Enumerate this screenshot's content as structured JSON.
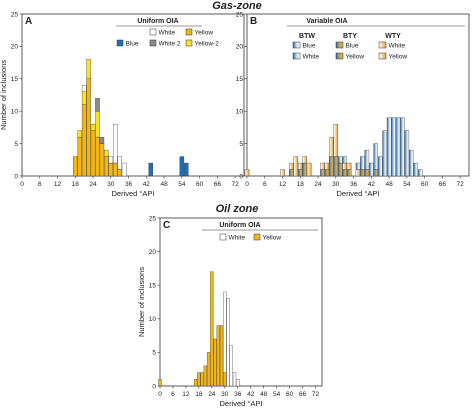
{
  "colors": {
    "white": "#ffffff",
    "yellow": "#f2b51a",
    "yellow2": "#fce02a",
    "blue": "#1f6fb5",
    "grey": "#8a8a8a",
    "gradBlue": "#2e6fae",
    "gradOrange": "#e8a23a"
  },
  "sections": {
    "gas_title": "Gas-zone",
    "oil_title": "Oil zone"
  },
  "chart_data": [
    {
      "id": "A",
      "type": "bar",
      "stacked": true,
      "panel_label": "A",
      "legend_title": "Uniform OIA",
      "legend": [
        {
          "name": "White",
          "color": "white"
        },
        {
          "name": "Yellow",
          "color": "yellow"
        },
        {
          "name": "Blue",
          "color": "blue"
        },
        {
          "name": "White 2",
          "color": "grey"
        },
        {
          "name": "Yellow-2",
          "color": "yellow2"
        }
      ],
      "xlabel": "Derived °API",
      "ylabel": "Number of inclusions",
      "xlim": [
        0,
        75
      ],
      "ylim": [
        0,
        25
      ],
      "xticks": [
        "0",
        "6",
        "12",
        "18",
        "24",
        "30",
        "36",
        "42",
        "48",
        "54",
        "60",
        "66",
        "72"
      ],
      "yticks": [
        "0",
        "5",
        "10",
        "15",
        "20",
        "25"
      ],
      "bin_width": 1.5,
      "bars": [
        {
          "x": 18,
          "segments": [
            [
              "yellow",
              3
            ]
          ]
        },
        {
          "x": 19.5,
          "segments": [
            [
              "yellow",
              6
            ],
            [
              "yellow2",
              1
            ]
          ]
        },
        {
          "x": 21,
          "segments": [
            [
              "yellow",
              11
            ],
            [
              "yellow2",
              2
            ],
            [
              "white",
              1
            ]
          ]
        },
        {
          "x": 22.5,
          "segments": [
            [
              "yellow",
              15
            ],
            [
              "yellow2",
              3
            ]
          ]
        },
        {
          "x": 24,
          "segments": [
            [
              "yellow",
              7
            ],
            [
              "yellow2",
              1
            ]
          ]
        },
        {
          "x": 25.5,
          "segments": [
            [
              "yellow",
              6
            ],
            [
              "yellow2",
              4
            ],
            [
              "grey",
              2
            ]
          ]
        },
        {
          "x": 27,
          "segments": [
            [
              "yellow",
              5
            ],
            [
              "grey",
              1
            ]
          ]
        },
        {
          "x": 28.5,
          "segments": [
            [
              "yellow",
              3
            ],
            [
              "yellow2",
              1
            ]
          ]
        },
        {
          "x": 30,
          "segments": [
            [
              "yellow",
              2
            ],
            [
              "white",
              1
            ]
          ]
        },
        {
          "x": 31.5,
          "segments": [
            [
              "yellow",
              2
            ],
            [
              "white",
              6
            ]
          ]
        },
        {
          "x": 33,
          "segments": [
            [
              "yellow",
              1
            ],
            [
              "white",
              2
            ]
          ]
        },
        {
          "x": 34.5,
          "segments": [
            [
              "white",
              2
            ]
          ]
        },
        {
          "x": 43.5,
          "segments": [
            [
              "blue",
              2
            ]
          ]
        },
        {
          "x": 54,
          "segments": [
            [
              "blue",
              3
            ]
          ]
        },
        {
          "x": 55.5,
          "segments": [
            [
              "blue",
              2
            ]
          ]
        }
      ]
    },
    {
      "id": "B",
      "type": "bar",
      "stacked": true,
      "panel_label": "B",
      "legend_title": "Variable OIA",
      "legend_groups": [
        {
          "name": "BTW",
          "items": [
            "Blue",
            "White"
          ]
        },
        {
          "name": "BTY",
          "items": [
            "Blue",
            "Yellow"
          ]
        },
        {
          "name": "WTY",
          "items": [
            "White",
            "Yellow"
          ]
        }
      ],
      "xlabel": "Derived °API",
      "xlim": [
        0,
        75
      ],
      "ylim": [
        0,
        25
      ],
      "xticks": [
        "0",
        "6",
        "12",
        "18",
        "24",
        "30",
        "36",
        "42",
        "48",
        "54",
        "60",
        "66",
        "72"
      ],
      "yticks": [
        "0",
        "5",
        "10",
        "15",
        "20",
        "25"
      ],
      "bin_width": 1.5,
      "bars": [
        {
          "x": 0,
          "segments": [
            [
              "wty",
              1
            ]
          ]
        },
        {
          "x": 12,
          "segments": [
            [
              "wty",
              1
            ]
          ]
        },
        {
          "x": 15,
          "segments": [
            [
              "bty",
              1
            ],
            [
              "wty",
              1
            ]
          ]
        },
        {
          "x": 16.5,
          "segments": [
            [
              "wty",
              3
            ]
          ]
        },
        {
          "x": 18,
          "segments": [
            [
              "bty",
              1
            ],
            [
              "wty",
              1
            ]
          ]
        },
        {
          "x": 19.5,
          "segments": [
            [
              "bty",
              2
            ],
            [
              "wty",
              1
            ]
          ]
        },
        {
          "x": 21,
          "segments": [
            [
              "wty",
              2
            ]
          ]
        },
        {
          "x": 25.5,
          "segments": [
            [
              "bty",
              1
            ],
            [
              "wty",
              1
            ]
          ]
        },
        {
          "x": 27,
          "segments": [
            [
              "bty",
              1
            ],
            [
              "wty",
              1
            ]
          ]
        },
        {
          "x": 28.5,
          "segments": [
            [
              "bty",
              3
            ],
            [
              "wty",
              3
            ]
          ]
        },
        {
          "x": 30,
          "segments": [
            [
              "bty",
              3
            ],
            [
              "wty",
              5
            ]
          ]
        },
        {
          "x": 31.5,
          "segments": [
            [
              "bty",
              2
            ],
            [
              "btw",
              1
            ]
          ]
        },
        {
          "x": 33,
          "segments": [
            [
              "bty",
              1
            ],
            [
              "wty",
              1
            ],
            [
              "btw",
              1
            ]
          ]
        },
        {
          "x": 34.5,
          "segments": [
            [
              "bty",
              1
            ],
            [
              "wty",
              1
            ]
          ]
        },
        {
          "x": 37.5,
          "segments": [
            [
              "wty",
              1
            ],
            [
              "btw",
              1
            ]
          ]
        },
        {
          "x": 39,
          "segments": [
            [
              "bty",
              1
            ],
            [
              "btw",
              2
            ]
          ]
        },
        {
          "x": 40.5,
          "segments": [
            [
              "bty",
              1
            ],
            [
              "btw",
              3
            ]
          ]
        },
        {
          "x": 42,
          "segments": [
            [
              "btw",
              2
            ]
          ]
        },
        {
          "x": 43.5,
          "segments": [
            [
              "bty",
              1
            ],
            [
              "btw",
              4
            ]
          ]
        },
        {
          "x": 45,
          "segments": [
            [
              "btw",
              3
            ]
          ]
        },
        {
          "x": 46.5,
          "segments": [
            [
              "btw",
              7
            ]
          ]
        },
        {
          "x": 48,
          "segments": [
            [
              "btw",
              9
            ]
          ]
        },
        {
          "x": 49.5,
          "segments": [
            [
              "btw",
              9
            ]
          ]
        },
        {
          "x": 51,
          "segments": [
            [
              "btw",
              9
            ]
          ]
        },
        {
          "x": 52.5,
          "segments": [
            [
              "btw",
              9
            ]
          ]
        },
        {
          "x": 54,
          "segments": [
            [
              "btw",
              7
            ]
          ]
        },
        {
          "x": 55.5,
          "segments": [
            [
              "btw",
              4
            ]
          ]
        },
        {
          "x": 57,
          "segments": [
            [
              "btw",
              2
            ]
          ]
        },
        {
          "x": 58.5,
          "segments": [
            [
              "btw",
              1
            ]
          ]
        }
      ]
    },
    {
      "id": "C",
      "type": "bar",
      "stacked": true,
      "panel_label": "C",
      "legend_title": "Uniform OIA",
      "legend": [
        {
          "name": "White",
          "color": "white"
        },
        {
          "name": "Yellow",
          "color": "yellow"
        }
      ],
      "xlabel": "Derived °API",
      "ylabel": "Number of inclusions",
      "xlim": [
        0,
        75
      ],
      "ylim": [
        0,
        25
      ],
      "xticks": [
        "0",
        "6",
        "12",
        "18",
        "24",
        "30",
        "36",
        "42",
        "48",
        "54",
        "60",
        "66",
        "72"
      ],
      "yticks": [
        "0",
        "5",
        "10",
        "15",
        "20",
        "25"
      ],
      "bin_width": 1.5,
      "bars": [
        {
          "x": 0,
          "segments": [
            [
              "yellow",
              1
            ]
          ]
        },
        {
          "x": 16.5,
          "segments": [
            [
              "yellow",
              1
            ]
          ]
        },
        {
          "x": 18,
          "segments": [
            [
              "yellow",
              2
            ]
          ]
        },
        {
          "x": 19.5,
          "segments": [
            [
              "yellow",
              2
            ]
          ]
        },
        {
          "x": 21,
          "segments": [
            [
              "yellow",
              3
            ]
          ]
        },
        {
          "x": 22.5,
          "segments": [
            [
              "yellow",
              5
            ]
          ]
        },
        {
          "x": 24,
          "segments": [
            [
              "yellow",
              17
            ]
          ]
        },
        {
          "x": 25.5,
          "segments": [
            [
              "yellow",
              7
            ]
          ]
        },
        {
          "x": 27,
          "segments": [
            [
              "yellow",
              9
            ]
          ]
        },
        {
          "x": 28.5,
          "segments": [
            [
              "yellow",
              9
            ]
          ]
        },
        {
          "x": 30,
          "segments": [
            [
              "yellow",
              2
            ],
            [
              "white",
              12
            ]
          ]
        },
        {
          "x": 31.5,
          "segments": [
            [
              "white",
              13
            ]
          ]
        },
        {
          "x": 33,
          "segments": [
            [
              "white",
              6
            ]
          ]
        },
        {
          "x": 34.5,
          "segments": [
            [
              "white",
              2
            ]
          ]
        },
        {
          "x": 36,
          "segments": [
            [
              "white",
              1
            ]
          ]
        }
      ]
    }
  ]
}
